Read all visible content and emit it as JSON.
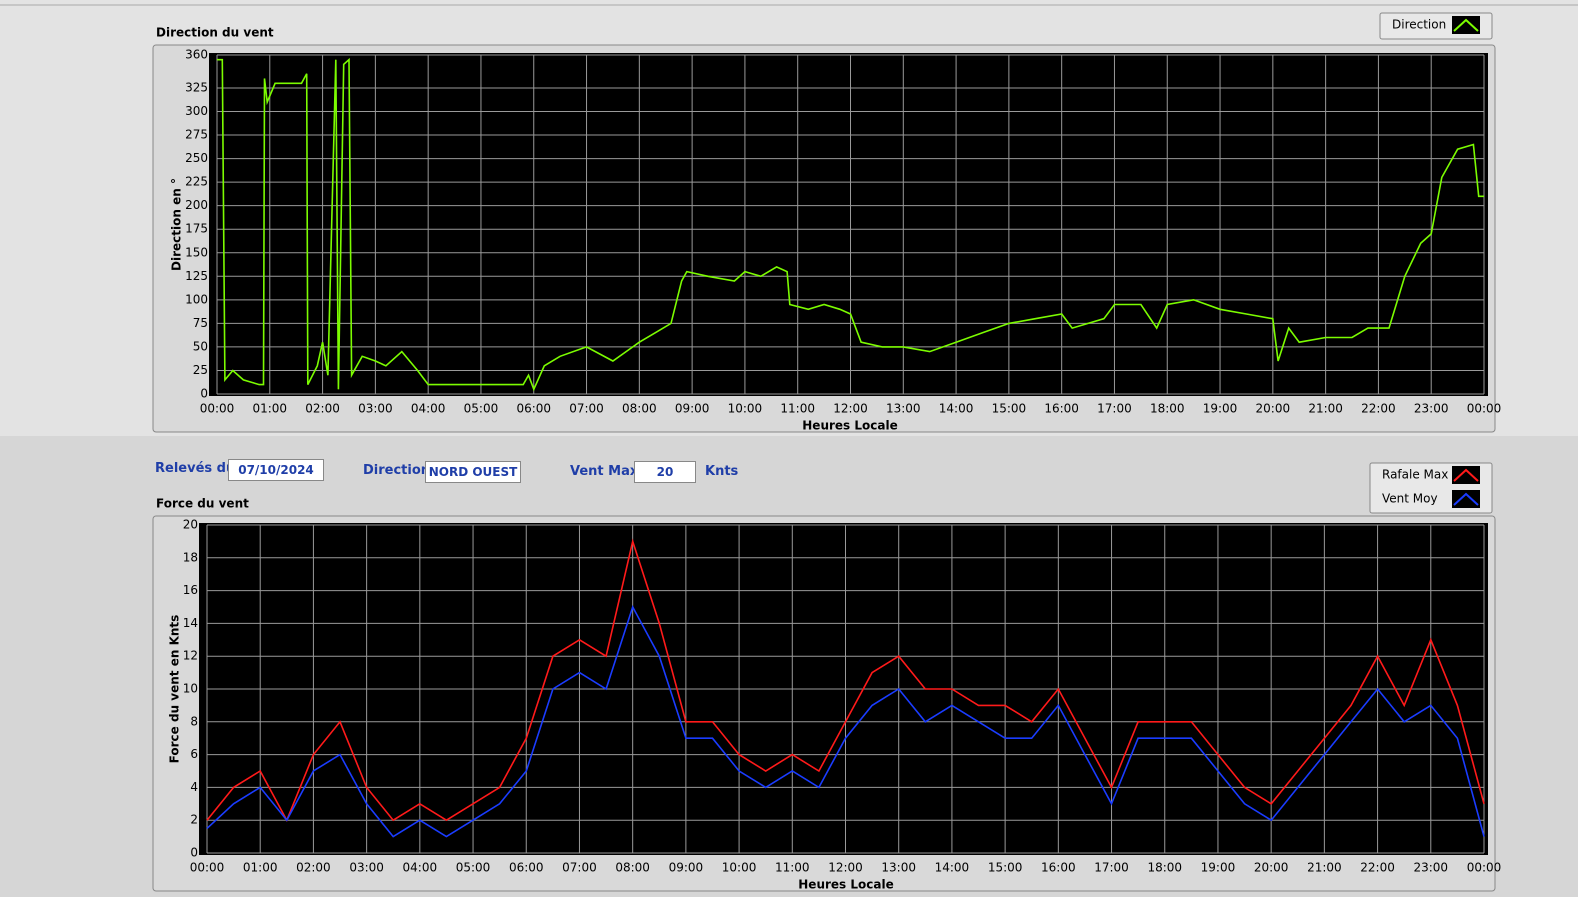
{
  "controls": {
    "date_label": "Relevés du",
    "date": "07/10/2024",
    "direction_label": "Direction",
    "direction": "NORD OUEST",
    "vmax_label": "Vent Max",
    "vmax": 20,
    "vmax_unit": "Knts"
  },
  "chart_data": [
    {
      "type": "line",
      "title": "Direction du vent",
      "x_label": "Heures Locale",
      "y_label": "Direction en °",
      "grid": true,
      "x": [
        0,
        0.1,
        0.15,
        0.3,
        0.5,
        0.8,
        0.88,
        0.9,
        0.95,
        1.1,
        1.6,
        1.7,
        1.72,
        1.9,
        2.0,
        2.1,
        2.25,
        2.3,
        2.4,
        2.5,
        2.55,
        2.75,
        3.0,
        3.2,
        3.5,
        3.8,
        4.0,
        5.0,
        5.8,
        5.9,
        6.0,
        6.2,
        6.5,
        7.0,
        7.5,
        8.0,
        8.3,
        8.6,
        8.8,
        8.9,
        9.3,
        9.8,
        10.0,
        10.3,
        10.6,
        10.8,
        10.85,
        11.2,
        11.5,
        11.8,
        12.0,
        12.2,
        12.6,
        13.0,
        13.5,
        14.0,
        14.5,
        15.0,
        15.5,
        16.0,
        16.2,
        16.5,
        16.8,
        17.0,
        17.5,
        17.8,
        18.0,
        18.5,
        19.0,
        19.5,
        20.0,
        20.1,
        20.3,
        20.5,
        21.0,
        21.5,
        21.8,
        22.2,
        22.5,
        22.8,
        23.0,
        23.2,
        23.5,
        23.8,
        23.9,
        24.0
      ],
      "series": [
        {
          "name": "Direction",
          "color": "#7cfc00",
          "values": [
            355,
            355,
            15,
            25,
            15,
            10,
            10,
            335,
            310,
            330,
            330,
            340,
            10,
            30,
            55,
            20,
            355,
            5,
            350,
            355,
            20,
            40,
            35,
            30,
            45,
            25,
            10,
            10,
            10,
            20,
            5,
            30,
            40,
            50,
            35,
            55,
            65,
            75,
            120,
            130,
            125,
            120,
            130,
            125,
            135,
            130,
            95,
            90,
            95,
            90,
            85,
            55,
            50,
            50,
            45,
            55,
            65,
            75,
            80,
            85,
            70,
            75,
            80,
            95,
            95,
            70,
            95,
            100,
            90,
            85,
            80,
            35,
            70,
            55,
            60,
            60,
            70,
            70,
            125,
            160,
            170,
            230,
            260,
            265,
            210,
            210
          ]
        }
      ],
      "xlim": [
        0,
        24
      ],
      "ylim": [
        0,
        360
      ],
      "xticks": [
        {
          "value": 0,
          "label": "00:00"
        },
        {
          "value": 1,
          "label": "01:00"
        },
        {
          "value": 2,
          "label": "02:00"
        },
        {
          "value": 3,
          "label": "03:00"
        },
        {
          "value": 4,
          "label": "04:00"
        },
        {
          "value": 5,
          "label": "05:00"
        },
        {
          "value": 6,
          "label": "06:00"
        },
        {
          "value": 7,
          "label": "07:00"
        },
        {
          "value": 8,
          "label": "08:00"
        },
        {
          "value": 9,
          "label": "09:00"
        },
        {
          "value": 10,
          "label": "10:00"
        },
        {
          "value": 11,
          "label": "11:00"
        },
        {
          "value": 12,
          "label": "12:00"
        },
        {
          "value": 13,
          "label": "13:00"
        },
        {
          "value": 14,
          "label": "14:00"
        },
        {
          "value": 15,
          "label": "15:00"
        },
        {
          "value": 16,
          "label": "16:00"
        },
        {
          "value": 17,
          "label": "17:00"
        },
        {
          "value": 18,
          "label": "18:00"
        },
        {
          "value": 19,
          "label": "19:00"
        },
        {
          "value": 20,
          "label": "20:00"
        },
        {
          "value": 21,
          "label": "21:00"
        },
        {
          "value": 22,
          "label": "22:00"
        },
        {
          "value": 23,
          "label": "23:00"
        },
        {
          "value": 24,
          "label": "00:00"
        }
      ],
      "yticks": [
        0,
        25,
        50,
        75,
        100,
        125,
        150,
        175,
        200,
        225,
        250,
        275,
        300,
        325,
        360
      ]
    },
    {
      "type": "line",
      "title": "Force du vent",
      "x_label": "Heures Locale",
      "y_label": "Force du vent en Knts",
      "grid": true,
      "x": [
        0,
        0.5,
        1,
        1.5,
        2,
        2.5,
        3,
        3.5,
        4,
        4.5,
        5,
        5.5,
        6,
        6.5,
        7,
        7.5,
        8,
        8.5,
        9,
        9.5,
        10,
        10.5,
        11,
        11.5,
        12,
        12.5,
        13,
        13.5,
        14,
        14.5,
        15,
        15.5,
        16,
        16.5,
        17,
        17.5,
        18,
        18.5,
        19,
        19.5,
        20,
        20.5,
        21,
        21.5,
        22,
        22.5,
        23,
        23.5,
        24
      ],
      "series": [
        {
          "name": "Rafale Max",
          "color": "#ff1a1a",
          "values": [
            2,
            4,
            5,
            2,
            6,
            8,
            4,
            2,
            3,
            2,
            3,
            4,
            7,
            12,
            13,
            12,
            19,
            14,
            8,
            8,
            6,
            5,
            6,
            5,
            8,
            11,
            12,
            10,
            10,
            9,
            9,
            8,
            10,
            7,
            4,
            8,
            8,
            8,
            6,
            4,
            3,
            5,
            7,
            9,
            12,
            9,
            13,
            9,
            3
          ]
        },
        {
          "name": "Vent Moy",
          "color": "#1a3cff",
          "values": [
            1.5,
            3,
            4,
            2,
            5,
            6,
            3,
            1,
            2,
            1,
            2,
            3,
            5,
            10,
            11,
            10,
            15,
            12,
            7,
            7,
            5,
            4,
            5,
            4,
            7,
            9,
            10,
            8,
            9,
            8,
            7,
            7,
            9,
            6,
            3,
            7,
            7,
            7,
            5,
            3,
            2,
            4,
            6,
            8,
            10,
            8,
            9,
            7,
            1
          ]
        }
      ],
      "xlim": [
        0,
        24
      ],
      "ylim": [
        0,
        20
      ],
      "xticks": [
        {
          "value": 0,
          "label": "00:00"
        },
        {
          "value": 1,
          "label": "01:00"
        },
        {
          "value": 2,
          "label": "02:00"
        },
        {
          "value": 3,
          "label": "03:00"
        },
        {
          "value": 4,
          "label": "04:00"
        },
        {
          "value": 5,
          "label": "05:00"
        },
        {
          "value": 6,
          "label": "06:00"
        },
        {
          "value": 7,
          "label": "07:00"
        },
        {
          "value": 8,
          "label": "08:00"
        },
        {
          "value": 9,
          "label": "09:00"
        },
        {
          "value": 10,
          "label": "10:00"
        },
        {
          "value": 11,
          "label": "11:00"
        },
        {
          "value": 12,
          "label": "12:00"
        },
        {
          "value": 13,
          "label": "13:00"
        },
        {
          "value": 14,
          "label": "14:00"
        },
        {
          "value": 15,
          "label": "15:00"
        },
        {
          "value": 16,
          "label": "16:00"
        },
        {
          "value": 17,
          "label": "17:00"
        },
        {
          "value": 18,
          "label": "18:00"
        },
        {
          "value": 19,
          "label": "19:00"
        },
        {
          "value": 20,
          "label": "20:00"
        },
        {
          "value": 21,
          "label": "21:00"
        },
        {
          "value": 22,
          "label": "22:00"
        },
        {
          "value": 23,
          "label": "23:00"
        },
        {
          "value": 24,
          "label": "00:00"
        }
      ],
      "yticks": [
        0,
        2,
        4,
        6,
        8,
        10,
        12,
        14,
        16,
        18,
        20
      ]
    }
  ]
}
